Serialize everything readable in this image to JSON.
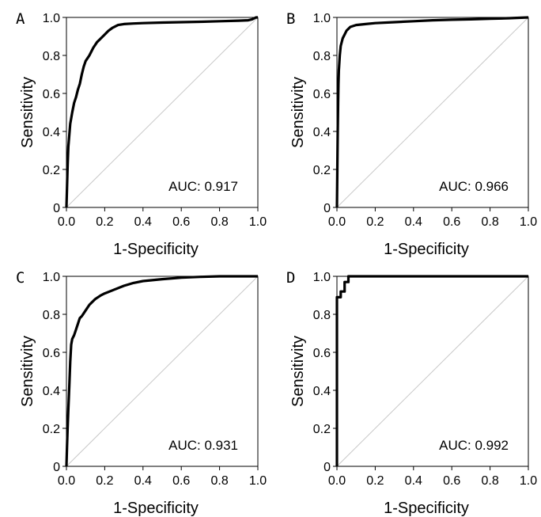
{
  "chart_data": [
    {
      "type": "line",
      "panel": "A",
      "xlabel": "1-Specificity",
      "ylabel": "Sensitivity",
      "xlim": [
        0,
        1
      ],
      "ylim": [
        0,
        1
      ],
      "xticks": [
        "0.0",
        "0.2",
        "0.4",
        "0.6",
        "0.8",
        "1.0"
      ],
      "yticks": [
        "0",
        "0.2",
        "0.4",
        "0.6",
        "0.8",
        "1.0"
      ],
      "annotation": "AUC: 0.917",
      "series": [
        {
          "x": [
            0,
            0.003,
            0.006,
            0.01,
            0.015,
            0.02,
            0.03,
            0.04,
            0.05,
            0.06,
            0.07,
            0.08,
            0.09,
            0.1,
            0.12,
            0.14,
            0.16,
            0.18,
            0.2,
            0.22,
            0.24,
            0.27,
            0.3,
            0.35,
            0.4,
            0.5,
            0.6,
            0.7,
            0.8,
            0.9,
            0.95,
            0.97,
            0.98,
            0.99,
            1.0
          ],
          "y": [
            0,
            0.1,
            0.22,
            0.32,
            0.38,
            0.44,
            0.5,
            0.55,
            0.58,
            0.62,
            0.65,
            0.7,
            0.74,
            0.77,
            0.8,
            0.84,
            0.87,
            0.89,
            0.91,
            0.93,
            0.945,
            0.96,
            0.965,
            0.968,
            0.97,
            0.973,
            0.975,
            0.977,
            0.98,
            0.983,
            0.985,
            0.99,
            0.995,
            1.0,
            1.0
          ]
        },
        {
          "x": [
            0,
            1
          ],
          "y": [
            0,
            1
          ]
        }
      ]
    },
    {
      "type": "line",
      "panel": "B",
      "xlabel": "1-Specificity",
      "ylabel": "Sensitivity",
      "xlim": [
        0,
        1
      ],
      "ylim": [
        0,
        1
      ],
      "xticks": [
        "0.0",
        "0.2",
        "0.4",
        "0.6",
        "0.8",
        "1.0"
      ],
      "yticks": [
        "0",
        "0.2",
        "0.4",
        "0.6",
        "0.8",
        "1.0"
      ],
      "annotation": "AUC: 0.966",
      "series": [
        {
          "x": [
            0,
            0.002,
            0.004,
            0.006,
            0.008,
            0.01,
            0.015,
            0.02,
            0.03,
            0.04,
            0.05,
            0.07,
            0.1,
            0.15,
            0.2,
            0.3,
            0.4,
            0.5,
            0.6,
            0.7,
            0.8,
            0.9,
            1.0
          ],
          "y": [
            0,
            0.2,
            0.4,
            0.55,
            0.65,
            0.72,
            0.8,
            0.85,
            0.89,
            0.91,
            0.93,
            0.95,
            0.96,
            0.965,
            0.97,
            0.975,
            0.98,
            0.985,
            0.988,
            0.99,
            0.993,
            0.996,
            1.0
          ]
        },
        {
          "x": [
            0,
            1
          ],
          "y": [
            0,
            1
          ]
        }
      ]
    },
    {
      "type": "line",
      "panel": "C",
      "xlabel": "1-Specificity",
      "ylabel": "Sensitivity",
      "xlim": [
        0,
        1
      ],
      "ylim": [
        0,
        1
      ],
      "xticks": [
        "0.0",
        "0.2",
        "0.4",
        "0.6",
        "0.8",
        "1.0"
      ],
      "yticks": [
        "0",
        "0.2",
        "0.4",
        "0.6",
        "0.8",
        "1.0"
      ],
      "annotation": "AUC: 0.931",
      "series": [
        {
          "x": [
            0,
            0.003,
            0.006,
            0.01,
            0.015,
            0.02,
            0.025,
            0.03,
            0.04,
            0.05,
            0.06,
            0.07,
            0.08,
            0.1,
            0.12,
            0.15,
            0.18,
            0.2,
            0.25,
            0.3,
            0.35,
            0.4,
            0.5,
            0.6,
            0.7,
            0.8,
            0.9,
            1.0
          ],
          "y": [
            0,
            0.1,
            0.2,
            0.3,
            0.42,
            0.55,
            0.64,
            0.67,
            0.69,
            0.72,
            0.75,
            0.78,
            0.79,
            0.82,
            0.85,
            0.88,
            0.9,
            0.91,
            0.93,
            0.95,
            0.965,
            0.975,
            0.985,
            0.993,
            0.997,
            1.0,
            1.0,
            1.0
          ]
        },
        {
          "x": [
            0,
            1
          ],
          "y": [
            0,
            1
          ]
        }
      ]
    },
    {
      "type": "line",
      "panel": "D",
      "xlabel": "1-Specificity",
      "ylabel": "Sensitivity",
      "xlim": [
        0,
        1
      ],
      "ylim": [
        0,
        1
      ],
      "xticks": [
        "0.0",
        "0.2",
        "0.4",
        "0.6",
        "0.8",
        "1.0"
      ],
      "yticks": [
        "0",
        "0.2",
        "0.4",
        "0.6",
        "0.8",
        "1.0"
      ],
      "annotation": "AUC: 0.992",
      "series": [
        {
          "x": [
            0,
            0,
            0.02,
            0.02,
            0.04,
            0.04,
            0.06,
            0.06,
            1.0
          ],
          "y": [
            0,
            0.89,
            0.89,
            0.92,
            0.92,
            0.97,
            0.97,
            1.0,
            1.0
          ]
        },
        {
          "x": [
            0,
            1
          ],
          "y": [
            0,
            1
          ]
        }
      ]
    }
  ]
}
